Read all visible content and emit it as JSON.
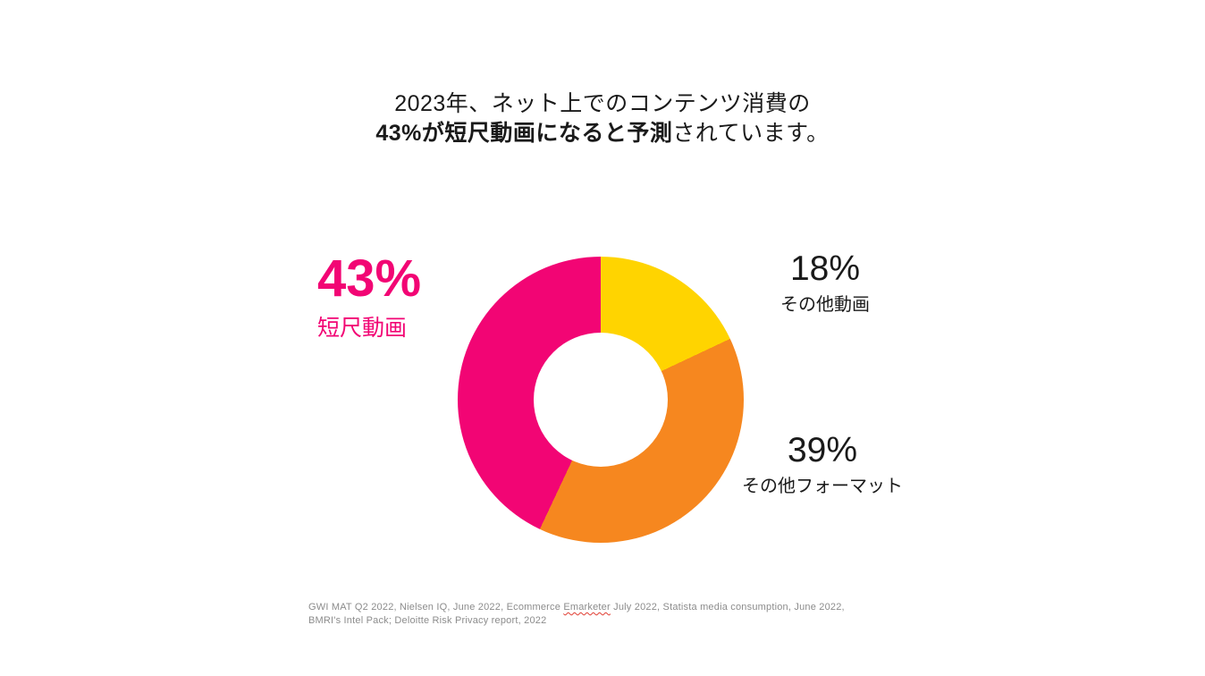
{
  "title": {
    "line1": "2023年、ネット上でのコンテンツ消費の",
    "line2_bold": "43%が短尺動画になると予測",
    "line2_normal": "されています。"
  },
  "chart_data": {
    "type": "pie",
    "subtype": "donut",
    "title": "2023年、ネット上でのコンテンツ消費の43%が短尺動画になると予測されています。",
    "start_angle_deg": 0,
    "direction": "clockwise",
    "hole_ratio": 0.47,
    "slices": [
      {
        "label": "その他動画",
        "value": 18,
        "color": "#FFD400"
      },
      {
        "label": "その他フォーマット",
        "value": 39,
        "color": "#F6871F"
      },
      {
        "label": "短尺動画",
        "value": 43,
        "color": "#F20574"
      }
    ],
    "legend_position": "callouts"
  },
  "callouts": {
    "shortform": {
      "pct": "43%",
      "name": "短尺動画"
    },
    "othervideo": {
      "pct": "18%",
      "name": "その他動画"
    },
    "otherformat": {
      "pct": "39%",
      "name": "その他フォーマット"
    }
  },
  "footer": {
    "line1_before": "GWI MAT Q2 2022, Nielsen IQ, June 2022, Ecommerce ",
    "line1_squiggle": "Emarketer",
    "line1_after": " July 2022, Statista media consumption, June 2022,",
    "line2": "BMRI's Intel Pack; Deloitte Risk Privacy report, 2022"
  }
}
